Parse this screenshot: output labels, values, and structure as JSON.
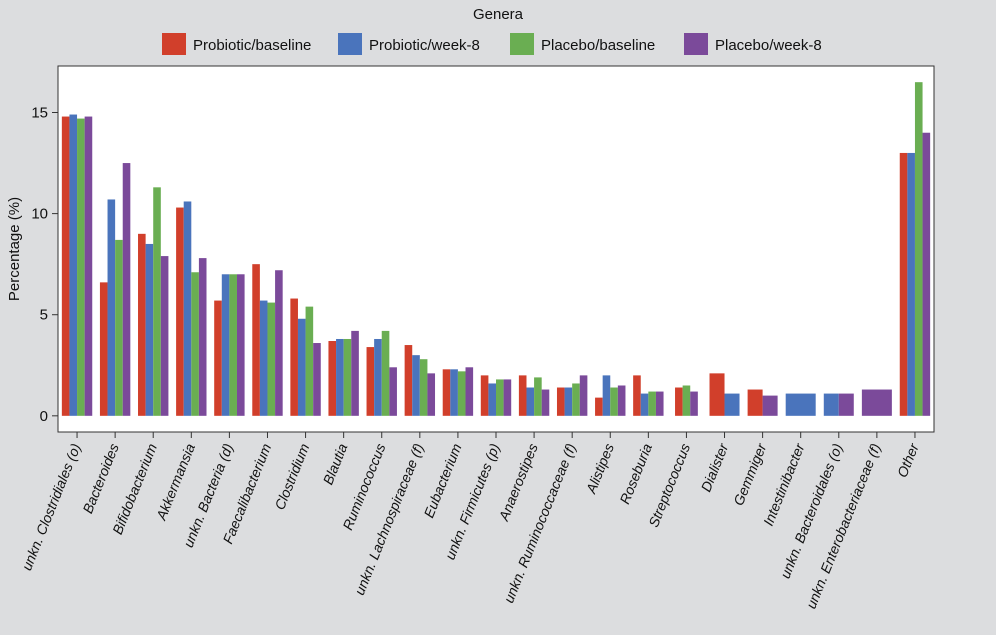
{
  "chart_data": {
    "type": "bar",
    "legend_title": "Genera",
    "legend_placement": "top",
    "ylabel": "Percentage (%)",
    "ylim": [
      -0.8,
      17.3
    ],
    "yticks": [
      0,
      5,
      10,
      15
    ],
    "grid": false,
    "categories": [
      "unkn. Clostridiales (o)",
      "Bacteroides",
      "Bifidobacterium",
      "Akkermansia",
      "unkn. Bacteria (d)",
      "Faecalibacterium",
      "Clostridium",
      "Blautia",
      "Ruminococcus",
      "unkn. Lachnospiraceae (f)",
      "Eubacterium",
      "unkn. Firmicutes (p)",
      "Anaerostipes",
      "unkn. Ruminococcaceae (f)",
      "Alistipes",
      "Roseburia",
      "Streptococcus",
      "Dialister",
      "Gemmiger",
      "Intestinibacter",
      "unkn. Bacteroidales (o)",
      "unkn. Enterobacteriaceae (f)",
      "Other"
    ],
    "series": [
      {
        "name": "Probiotic/baseline",
        "color": "#d13f2b",
        "values": [
          14.8,
          6.6,
          9.0,
          10.3,
          5.7,
          7.5,
          5.8,
          3.7,
          3.4,
          3.5,
          2.3,
          2.0,
          2.0,
          1.4,
          0.9,
          2.0,
          1.4,
          2.1,
          1.3,
          null,
          null,
          null,
          13.0
        ]
      },
      {
        "name": "Probiotic/week-8",
        "color": "#4a74bc",
        "values": [
          14.9,
          10.7,
          8.5,
          10.6,
          7.0,
          5.7,
          4.8,
          3.8,
          3.8,
          3.0,
          2.3,
          1.6,
          1.4,
          1.4,
          2.0,
          1.1,
          null,
          1.1,
          null,
          1.1,
          1.1,
          null,
          13.0
        ]
      },
      {
        "name": "Placebo/baseline",
        "color": "#6aae52",
        "values": [
          14.7,
          8.7,
          11.3,
          7.1,
          7.0,
          5.6,
          5.4,
          3.8,
          4.2,
          2.8,
          2.2,
          1.8,
          1.9,
          1.6,
          1.4,
          1.2,
          1.5,
          null,
          null,
          null,
          null,
          null,
          16.5
        ]
      },
      {
        "name": "Placebo/week-8",
        "color": "#7b4a9a",
        "values": [
          14.8,
          12.5,
          7.9,
          7.8,
          7.0,
          7.2,
          3.6,
          4.2,
          2.4,
          2.1,
          2.4,
          1.8,
          1.3,
          2.0,
          1.5,
          1.2,
          1.2,
          null,
          1.0,
          null,
          1.1,
          1.3,
          14.0
        ]
      }
    ]
  }
}
